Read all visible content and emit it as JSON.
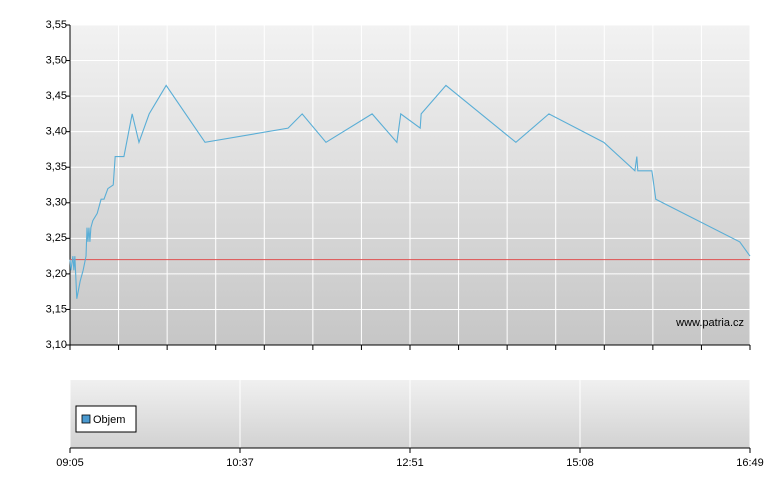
{
  "chart_data": [
    {
      "type": "line",
      "x": [
        0,
        0.02,
        0.06,
        0.08,
        0.1,
        0.14,
        0.21,
        0.27,
        0.33,
        0.35,
        0.37,
        0.39,
        0.41,
        0.43,
        0.47,
        0.56,
        0.64,
        0.7,
        0.78,
        0.89,
        0.93,
        1.11,
        1.28,
        1.42,
        1.63,
        1.98,
        2.78,
        4.49,
        4.78,
        5.27,
        6.22,
        6.73,
        6.81,
        7.21,
        7.23,
        7.74,
        9.18,
        9.86,
        10.99,
        11.63,
        11.67,
        11.69,
        11.98,
        12.06,
        13.79,
        14
      ],
      "series": [
        {
          "color": "#5aaed6",
          "values": [
            3.22,
            3.205,
            3.225,
            3.205,
            3.225,
            3.165,
            3.19,
            3.205,
            3.225,
            3.265,
            3.245,
            3.265,
            3.245,
            3.265,
            3.275,
            3.285,
            3.305,
            3.305,
            3.32,
            3.325,
            3.365,
            3.365,
            3.425,
            3.385,
            3.425,
            3.465,
            3.385,
            3.405,
            3.425,
            3.385,
            3.425,
            3.385,
            3.425,
            3.405,
            3.425,
            3.465,
            3.385,
            3.425,
            3.385,
            3.345,
            3.365,
            3.345,
            3.345,
            3.305,
            3.245,
            3.225
          ]
        }
      ],
      "reference_line": {
        "value": 3.22,
        "color": "#e05050"
      },
      "xlim": [
        0,
        14
      ],
      "ylim": [
        3.1,
        3.55
      ],
      "yticks": [
        {
          "value": 3.1,
          "label": "3,10"
        },
        {
          "value": 3.15,
          "label": "3,15"
        },
        {
          "value": 3.2,
          "label": "3,20"
        },
        {
          "value": 3.25,
          "label": "3,25"
        },
        {
          "value": 3.3,
          "label": "3,30"
        },
        {
          "value": 3.35,
          "label": "3,35"
        },
        {
          "value": 3.4,
          "label": "3,40"
        },
        {
          "value": 3.45,
          "label": "3,45"
        },
        {
          "value": 3.5,
          "label": "3,50"
        },
        {
          "value": 3.55,
          "label": "3,55"
        }
      ],
      "grid": true,
      "watermark": "www.patria.cz"
    },
    {
      "type": "bar",
      "series": [
        {
          "name": "Objem",
          "color": "#4b9ad0"
        }
      ],
      "xlim": [
        0,
        14
      ],
      "xticks": [
        {
          "value": 0,
          "label": "09:05"
        },
        {
          "value": 3.5,
          "label": "10:37"
        },
        {
          "value": 7,
          "label": "12:51"
        },
        {
          "value": 10.5,
          "label": "15:08"
        },
        {
          "value": 14,
          "label": "16:49"
        }
      ],
      "grid": true
    }
  ]
}
